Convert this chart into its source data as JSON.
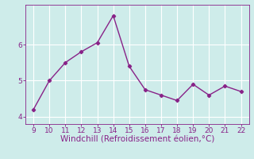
{
  "x": [
    9,
    10,
    11,
    12,
    13,
    14,
    15,
    16,
    17,
    18,
    19,
    20,
    21,
    22
  ],
  "y": [
    4.2,
    5.0,
    5.5,
    5.8,
    6.05,
    6.8,
    5.4,
    4.75,
    4.6,
    4.45,
    4.9,
    4.6,
    4.85,
    4.7
  ],
  "line_color": "#882288",
  "marker": "D",
  "marker_size": 2.2,
  "line_width": 1.0,
  "bg_color": "#ceecea",
  "grid_color": "#ffffff",
  "xlabel": "Windchill (Refroidissement éolien,°C)",
  "xlabel_color": "#882288",
  "xlabel_fontsize": 7.5,
  "tick_color": "#882288",
  "tick_fontsize": 6.5,
  "xlim": [
    8.5,
    22.5
  ],
  "ylim": [
    3.8,
    7.1
  ],
  "yticks": [
    4,
    5,
    6
  ],
  "xticks": [
    9,
    10,
    11,
    12,
    13,
    14,
    15,
    16,
    17,
    18,
    19,
    20,
    21,
    22
  ]
}
